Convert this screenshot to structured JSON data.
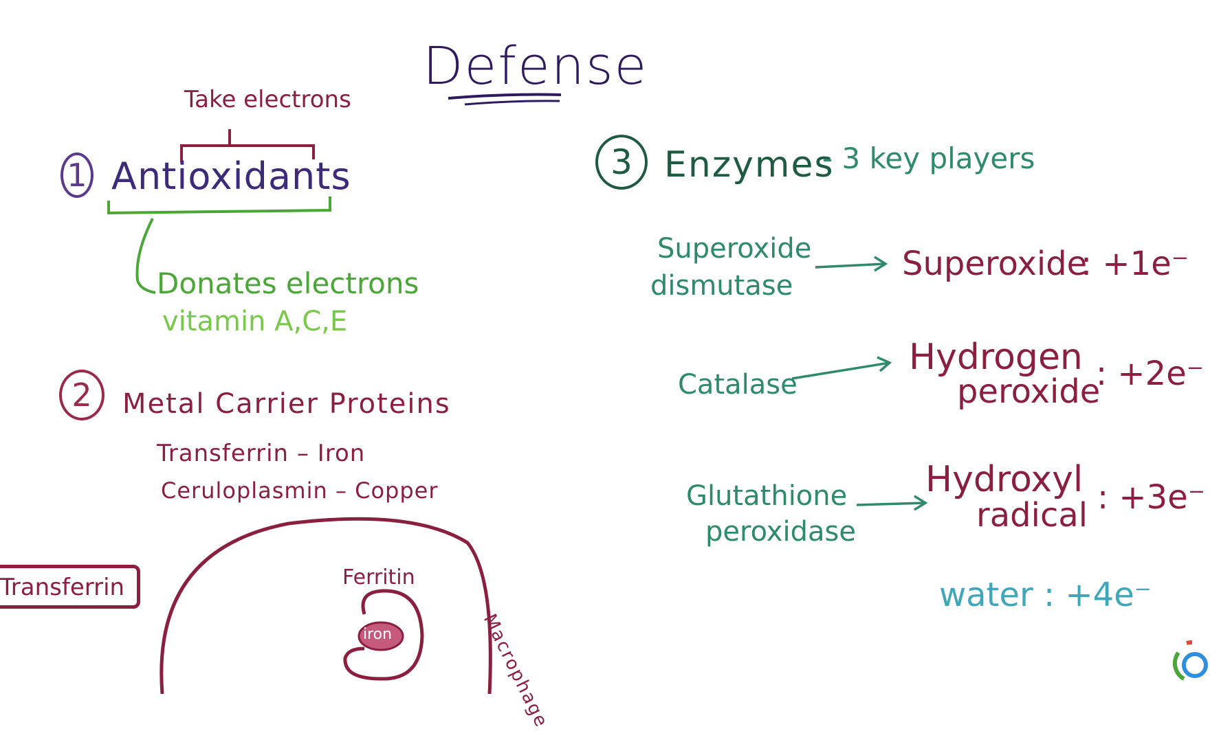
{
  "title": "Defense",
  "antioxidants": {
    "number": "1",
    "heading": "Antioxidants",
    "bracket_top_label": "Take electrons",
    "bracket_bottom_label": "Donates electrons",
    "examples": "vitamin A,C,E"
  },
  "metal_carriers": {
    "number": "2",
    "heading": "Metal Carrier Proteins",
    "pair1": "Transferrin – Iron",
    "pair2": "Ceruloplasmin – Copper"
  },
  "macrophage_sketch": {
    "transferrin_label": "Transferrin",
    "ferritin_label": "Ferritin",
    "iron_label": "iron",
    "cell_label": "Macrophage"
  },
  "enzymes": {
    "number": "3",
    "heading": "Enzymes",
    "subheading": "- 3 key players",
    "rows": [
      {
        "enzyme_line1": "Superoxide",
        "enzyme_line2": "dismutase",
        "substrate_line1": "Superoxide",
        "substrate_line2": "",
        "electrons": ": +1e⁻"
      },
      {
        "enzyme_line1": "Catalase",
        "enzyme_line2": "",
        "substrate_line1": "Hydrogen",
        "substrate_line2": "peroxide",
        "electrons": ": +2e⁻"
      },
      {
        "enzyme_line1": "Glutathione",
        "enzyme_line2": "peroxidase",
        "substrate_line1": "Hydroxyl",
        "substrate_line2": "radical",
        "electrons": ": +3e⁻"
      }
    ],
    "water": "water : +4e⁻"
  },
  "colors": {
    "purple": "#3d2a78",
    "maroon": "#8a1f3f",
    "green": "#4aa637",
    "teal_dark": "#1f5a43",
    "teal": "#2e8a6a",
    "cyan": "#3fa7b8"
  },
  "icons": [
    "logo-icon"
  ]
}
